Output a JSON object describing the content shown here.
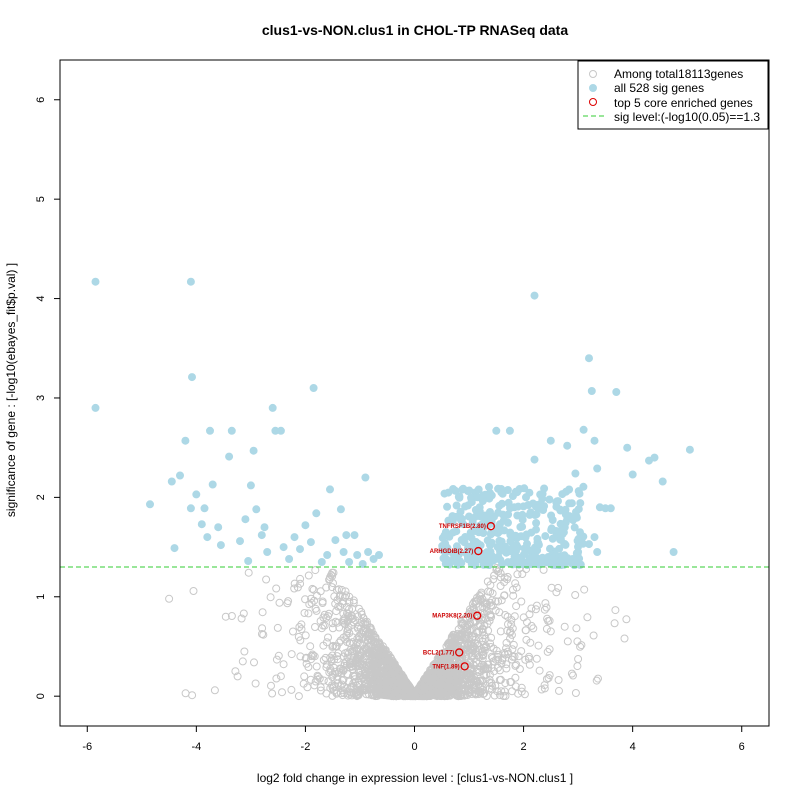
{
  "chart_data": {
    "type": "scatter",
    "title": "clus1-vs-NON.clus1 in CHOL-TP RNASeq data",
    "xlabel": "log2 fold change in expression level : [clus1-vs-NON.clus1 ]",
    "ylabel": "significance of gene : [-log10(ebayes_fit$p.val) ]",
    "xlim": [
      -6.5,
      6.5
    ],
    "ylim": [
      -0.3,
      6.4
    ],
    "xticks": [
      -6,
      -4,
      -2,
      0,
      2,
      4,
      6
    ],
    "yticks": [
      0,
      1,
      2,
      3,
      4,
      5,
      6
    ],
    "threshold": 1.3,
    "legend": {
      "position": "top-right",
      "entries": [
        {
          "label": "Among total18113genes",
          "symbol": "open-circle",
          "color": "#c8c8c8"
        },
        {
          "label": "all 528 sig genes",
          "symbol": "filled-circle",
          "color": "#add8e6"
        },
        {
          "label": "top 5 core enriched genes",
          "symbol": "open-circle",
          "color": "#dd0000"
        },
        {
          "label": "sig level:(-log10(0.05)==1.3",
          "symbol": "dashed-line",
          "color": "#33cc33"
        }
      ]
    },
    "colors": {
      "background_genes": "#c8c8c8",
      "sig_genes": "#add8e6",
      "core_genes": "#dd0000",
      "threshold_line": "#33cc33"
    },
    "sig_points": [
      [
        -5.85,
        4.17
      ],
      [
        -5.85,
        2.9
      ],
      [
        -4.85,
        1.93
      ],
      [
        -4.4,
        1.49
      ],
      [
        -4.45,
        2.16
      ],
      [
        -4.3,
        2.22
      ],
      [
        -4.2,
        2.57
      ],
      [
        -4.1,
        4.17
      ],
      [
        -4.08,
        3.21
      ],
      [
        -4.1,
        1.89
      ],
      [
        -4.0,
        2.03
      ],
      [
        -3.9,
        1.73
      ],
      [
        -3.85,
        1.89
      ],
      [
        -3.8,
        1.6
      ],
      [
        -3.75,
        2.67
      ],
      [
        -3.7,
        2.13
      ],
      [
        -3.6,
        1.7
      ],
      [
        -3.55,
        1.52
      ],
      [
        -3.4,
        2.41
      ],
      [
        -3.35,
        2.67
      ],
      [
        -3.2,
        1.56
      ],
      [
        -3.1,
        1.78
      ],
      [
        -3.0,
        2.12
      ],
      [
        -2.95,
        2.47
      ],
      [
        -2.9,
        1.88
      ],
      [
        -2.8,
        1.62
      ],
      [
        -2.7,
        1.45
      ],
      [
        -2.6,
        2.9
      ],
      [
        -2.55,
        2.67
      ],
      [
        -2.45,
        2.67
      ],
      [
        -2.4,
        1.5
      ],
      [
        -2.3,
        1.38
      ],
      [
        -2.2,
        1.6
      ],
      [
        -2.1,
        1.48
      ],
      [
        -2.0,
        1.72
      ],
      [
        -1.9,
        1.55
      ],
      [
        -1.85,
        3.1
      ],
      [
        -1.8,
        1.84
      ],
      [
        -1.7,
        1.35
      ],
      [
        -1.6,
        1.42
      ],
      [
        -1.55,
        2.08
      ],
      [
        -1.45,
        1.57
      ],
      [
        -1.35,
        1.88
      ],
      [
        -1.3,
        1.45
      ],
      [
        -1.2,
        1.35
      ],
      [
        -1.1,
        1.62
      ],
      [
        -1.05,
        1.42
      ],
      [
        -0.95,
        1.33
      ],
      [
        -0.9,
        2.2
      ],
      [
        -0.85,
        1.45
      ],
      [
        -0.75,
        1.38
      ],
      [
        -0.65,
        1.42
      ],
      [
        -3.05,
        1.36
      ],
      [
        -2.75,
        1.7
      ],
      [
        -1.25,
        1.62
      ],
      [
        2.2,
        4.03
      ],
      [
        3.2,
        3.4
      ],
      [
        3.25,
        3.07
      ],
      [
        3.7,
        3.06
      ],
      [
        3.1,
        2.68
      ],
      [
        3.3,
        2.57
      ],
      [
        2.5,
        2.57
      ],
      [
        2.8,
        2.52
      ],
      [
        3.9,
        2.5
      ],
      [
        4.3,
        2.37
      ],
      [
        4.4,
        2.4
      ],
      [
        5.05,
        2.48
      ],
      [
        4.55,
        2.16
      ],
      [
        4.0,
        2.23
      ],
      [
        4.75,
        1.45
      ],
      [
        3.35,
        2.29
      ],
      [
        3.5,
        1.89
      ],
      [
        3.4,
        1.9
      ],
      [
        3.6,
        1.89
      ],
      [
        1.5,
        2.67
      ],
      [
        1.75,
        2.67
      ],
      [
        2.2,
        2.38
      ],
      [
        2.95,
        2.24
      ],
      [
        3.3,
        1.6
      ],
      [
        3.2,
        1.53
      ],
      [
        3.0,
        1.45
      ],
      [
        2.9,
        1.38
      ],
      [
        3.35,
        1.45
      ],
      [
        2.6,
        1.95
      ],
      [
        2.8,
        1.78
      ]
    ],
    "core_genes": [
      {
        "label": "TNFRSF1B(2.80)",
        "x": 1.4,
        "y": 1.71
      },
      {
        "label": "ARHGDIB(2.27)",
        "x": 1.17,
        "y": 1.46
      },
      {
        "label": "MAP3K8(2.20)",
        "x": 1.15,
        "y": 0.81
      },
      {
        "label": "BCL2(1.77)",
        "x": 0.82,
        "y": 0.44
      },
      {
        "label": "TNF(1.89)",
        "x": 0.92,
        "y": 0.3
      }
    ]
  }
}
